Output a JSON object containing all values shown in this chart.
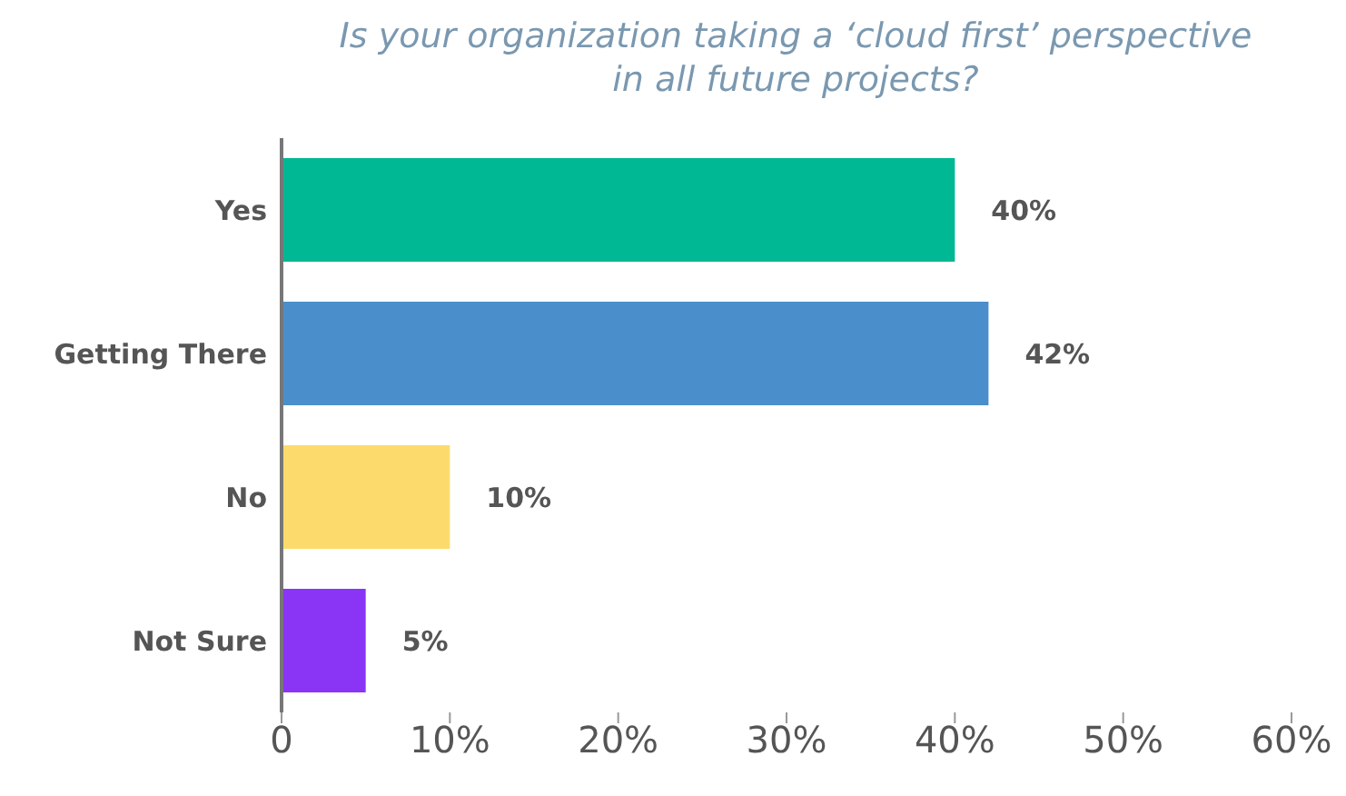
{
  "chart_data": {
    "type": "bar",
    "orientation": "horizontal",
    "title": "Is your organization taking a ‘cloud first’ perspective in all future projects?",
    "categories": [
      "Yes",
      "Getting There",
      "No",
      "Not Sure"
    ],
    "values": [
      40,
      42,
      10,
      5
    ],
    "colors": [
      "#00b894",
      "#4a8fcc",
      "#fcdb6c",
      "#8a35f6"
    ],
    "value_labels": [
      "40%",
      "42%",
      "10%",
      "5%"
    ],
    "xlim": [
      0,
      60
    ],
    "xticks": [
      {
        "value": 0,
        "label": "0"
      },
      {
        "value": 10,
        "label": "10%"
      },
      {
        "value": 20,
        "label": "20%"
      },
      {
        "value": 30,
        "label": "30%"
      },
      {
        "value": 40,
        "label": "40%"
      },
      {
        "value": 50,
        "label": "50%"
      },
      {
        "value": 60,
        "label": "60%"
      }
    ],
    "grid": false,
    "legend": false
  }
}
